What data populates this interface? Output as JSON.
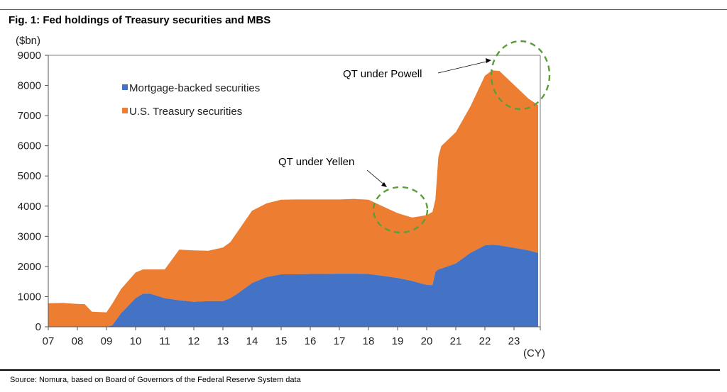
{
  "figure_title": "Fig. 1: Fed holdings of Treasury securities and MBS",
  "source_note": "Source: Nomura, based on Board of Governors of the Federal Reserve System data",
  "colors": {
    "mbs": "#4472c4",
    "treasury": "#ed7d31",
    "circle": "#5a9e3a",
    "rule_top": "#d9262c"
  },
  "chart_data": {
    "type": "area",
    "stacked": true,
    "ylabel": "($bn)",
    "xlabel": "(CY)",
    "ylim": [
      0,
      9000
    ],
    "yticks": [
      0,
      1000,
      2000,
      3000,
      4000,
      5000,
      6000,
      7000,
      8000,
      9000
    ],
    "xlim": [
      2007,
      2024
    ],
    "xticks": [
      2007,
      2008,
      2009,
      2010,
      2011,
      2012,
      2013,
      2014,
      2015,
      2016,
      2017,
      2018,
      2019,
      2020,
      2021,
      2022,
      2023
    ],
    "xtick_labels": [
      "07",
      "08",
      "09",
      "10",
      "11",
      "12",
      "13",
      "14",
      "15",
      "16",
      "17",
      "18",
      "19",
      "20",
      "21",
      "22",
      "23"
    ],
    "legend": {
      "placement": "upper-left",
      "entries": [
        "Mortgage-backed securities",
        "U.S. Treasury securities"
      ]
    },
    "x": [
      2007.0,
      2007.5,
      2008.0,
      2008.25,
      2008.5,
      2009.0,
      2009.2,
      2009.5,
      2010.0,
      2010.25,
      2010.5,
      2011.0,
      2011.5,
      2012.0,
      2012.5,
      2013.0,
      2013.25,
      2013.5,
      2014.0,
      2014.5,
      2015.0,
      2015.5,
      2016.0,
      2016.5,
      2017.0,
      2017.5,
      2018.0,
      2018.5,
      2019.0,
      2019.5,
      2019.75,
      2020.0,
      2020.2,
      2020.3,
      2020.4,
      2020.5,
      2021.0,
      2021.5,
      2022.0,
      2022.25,
      2022.5,
      2023.0,
      2023.5,
      2023.83
    ],
    "series": [
      {
        "name": "Mortgage-backed securities",
        "values": [
          0,
          0,
          0,
          0,
          0,
          0,
          50,
          450,
          950,
          1100,
          1100,
          950,
          880,
          830,
          850,
          850,
          950,
          1100,
          1450,
          1650,
          1740,
          1740,
          1750,
          1750,
          1760,
          1760,
          1750,
          1690,
          1620,
          1520,
          1450,
          1390,
          1380,
          1820,
          1900,
          1930,
          2100,
          2450,
          2700,
          2720,
          2700,
          2620,
          2530,
          2450
        ]
      },
      {
        "name": "U.S. Treasury securities",
        "values": [
          780,
          790,
          760,
          750,
          500,
          480,
          720,
          800,
          850,
          800,
          800,
          950,
          1680,
          1700,
          1670,
          1780,
          1850,
          2050,
          2400,
          2440,
          2470,
          2480,
          2470,
          2470,
          2460,
          2480,
          2460,
          2300,
          2150,
          2100,
          2210,
          2310,
          2430,
          2400,
          3730,
          4060,
          4350,
          4850,
          5620,
          5780,
          5780,
          5400,
          5030,
          4900
        ]
      }
    ],
    "annotations": [
      {
        "text": "QT under Yellen",
        "x": 2018.9,
        "y": 3900
      },
      {
        "text": "QT under Powell",
        "x": 2023.2,
        "y": 8300
      }
    ]
  }
}
